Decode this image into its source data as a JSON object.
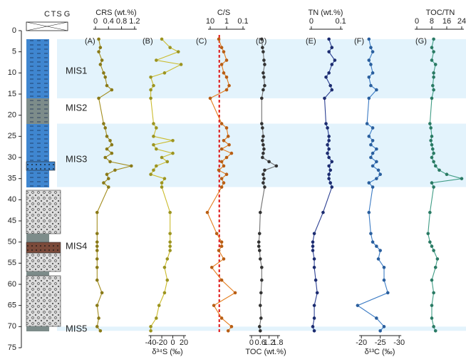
{
  "depth_axis": {
    "ylim": [
      0,
      75
    ],
    "yticks": [
      0,
      5,
      10,
      15,
      20,
      25,
      30,
      35,
      40,
      45,
      50,
      55,
      60,
      65,
      70,
      75
    ]
  },
  "grain_scale": [
    "C",
    "T",
    "S",
    "G"
  ],
  "mis": [
    {
      "name": "MIS1",
      "top": 2,
      "bottom": 16
    },
    {
      "name": "MIS2"
    },
    {
      "name": "MIS3",
      "top": 22,
      "bottom": 37
    },
    {
      "name": "MIS4"
    },
    {
      "name": "MIS5",
      "top": 70,
      "bottom": 71
    }
  ],
  "chart_data": [
    {
      "type": "line",
      "label": "(A)",
      "title": "CRS (wt.%)",
      "axis": "top",
      "xlim": [
        -0.35,
        1.4
      ],
      "xticks": [
        0,
        0.4,
        0.8,
        1.2
      ],
      "color": "#a38d1e",
      "point_color": "#8a7a18",
      "depths": [
        2,
        4,
        5,
        7,
        8,
        10,
        11,
        13,
        14,
        16,
        22,
        23,
        25,
        26,
        27,
        28,
        29,
        30,
        31,
        32,
        33,
        34,
        35,
        36,
        37,
        43,
        48,
        50,
        51,
        52,
        54,
        56,
        59,
        62,
        65,
        68,
        70,
        71
      ],
      "values": [
        0.1,
        0.15,
        0.1,
        0.2,
        0.15,
        0.25,
        0.3,
        0.35,
        0.5,
        0.1,
        0.25,
        0.3,
        0.35,
        0.45,
        0.5,
        0.35,
        0.5,
        0.3,
        0.45,
        1.1,
        0.6,
        0.35,
        0.4,
        0.25,
        0.4,
        0.05,
        0.05,
        0.05,
        0.05,
        0.05,
        0.05,
        0.05,
        0.05,
        0.2,
        0.05,
        0.1,
        0.05,
        0.15
      ]
    },
    {
      "type": "line",
      "label": "(B)",
      "title": "δ³⁴S (‰)",
      "axis": "bottom",
      "xlim": [
        -55,
        42
      ],
      "xticks": [
        -40,
        -20,
        0,
        20
      ],
      "color": "#cbbb2c",
      "point_color": "#9c9420",
      "depths": [
        2,
        4,
        5,
        7,
        8,
        10,
        11,
        13,
        14,
        16,
        22,
        23,
        25,
        26,
        27,
        28,
        29,
        30,
        31,
        32,
        33,
        34,
        35,
        36,
        37,
        43,
        48,
        50,
        51,
        52,
        54,
        56,
        59,
        62,
        65,
        68,
        70,
        71
      ],
      "values": [
        -20,
        -5,
        10,
        -30,
        15,
        -15,
        -40,
        -35,
        -40,
        -40,
        -35,
        -30,
        -35,
        0,
        -35,
        -30,
        0,
        -20,
        -10,
        -30,
        -35,
        -40,
        -15,
        -20,
        -20,
        -5,
        -5,
        -5,
        -5,
        -5,
        -10,
        -15,
        -10,
        -15,
        -25,
        -30,
        -40,
        -40
      ]
    },
    {
      "type": "line",
      "label": "(C)",
      "title": "C/S",
      "axis": "top",
      "log": true,
      "xlim": [
        45,
        0.067
      ],
      "xticks": [
        10,
        1,
        0.1
      ],
      "color": "#e47c1c",
      "point_color": "#b85e14",
      "reference_line": {
        "value": 2.8,
        "color": "#e01414"
      },
      "depths": [
        2,
        4,
        5,
        7,
        8,
        10,
        11,
        13,
        14,
        16,
        22,
        23,
        25,
        26,
        27,
        28,
        29,
        30,
        31,
        32,
        33,
        34,
        35,
        36,
        37,
        43,
        48,
        50,
        51,
        52,
        54,
        56,
        59,
        62,
        65,
        68,
        70,
        71
      ],
      "values": [
        3,
        2,
        1.5,
        1,
        2,
        1.5,
        1,
        0.7,
        1,
        10,
        2,
        1,
        0.8,
        1.5,
        0.7,
        2,
        0.5,
        1,
        2,
        1.5,
        3,
        1,
        2,
        1.5,
        2,
        15,
        4,
        2,
        2,
        3,
        1.5,
        8,
        2,
        0.3,
        6,
        2,
        0.5,
        0.8
      ]
    },
    {
      "type": "line",
      "label": "(D)",
      "title": "TOC (wt.%)",
      "axis": "bottom",
      "xlim": [
        -0.39,
        3.27
      ],
      "xticks": [
        0,
        0.6,
        1.2,
        1.8
      ],
      "color": "#707070",
      "point_color": "#333333",
      "depths": [
        2,
        4,
        5,
        7,
        8,
        10,
        11,
        13,
        14,
        16,
        22,
        23,
        25,
        26,
        27,
        28,
        29,
        30,
        31,
        32,
        33,
        34,
        35,
        36,
        37,
        43,
        48,
        50,
        51,
        52,
        54,
        56,
        59,
        62,
        65,
        68,
        70,
        71
      ],
      "values": [
        0.7,
        0.75,
        0.8,
        0.85,
        0.9,
        0.8,
        0.85,
        0.9,
        0.8,
        0.7,
        0.7,
        0.75,
        0.8,
        0.75,
        0.8,
        0.85,
        0.8,
        0.75,
        1.2,
        1.7,
        0.9,
        0.8,
        0.85,
        0.8,
        0.9,
        0.6,
        0.55,
        0.5,
        0.5,
        0.55,
        0.6,
        0.7,
        0.7,
        0.65,
        0.6,
        0.65,
        0.55,
        0.6
      ]
    },
    {
      "type": "line",
      "label": "(E)",
      "title": "TN (wt.%)",
      "axis": "top",
      "xlim": [
        -0.029,
        0.141
      ],
      "xticks": [
        0,
        0.1
      ],
      "color": "#2b3f92",
      "point_color": "#1c2c70",
      "depths": [
        2,
        4,
        5,
        7,
        8,
        10,
        11,
        13,
        14,
        16,
        22,
        23,
        25,
        26,
        27,
        28,
        29,
        30,
        31,
        32,
        33,
        34,
        35,
        36,
        37,
        43,
        48,
        50,
        51,
        52,
        54,
        56,
        59,
        62,
        65,
        68,
        70,
        71
      ],
      "values": [
        0.06,
        0.07,
        0.06,
        0.08,
        0.07,
        0.06,
        0.05,
        0.065,
        0.07,
        0.045,
        0.05,
        0.055,
        0.06,
        0.06,
        0.055,
        0.06,
        0.055,
        0.06,
        0.07,
        0.06,
        0.065,
        0.06,
        0.06,
        0.065,
        0.07,
        0.04,
        0.01,
        0.005,
        0.005,
        0.005,
        0.01,
        0.01,
        0.015,
        0.02,
        0.01,
        0.01,
        0.005,
        0.01
      ]
    },
    {
      "type": "line",
      "label": "(F)",
      "title": "δ¹³C (‰)",
      "axis": "bottom",
      "xlim": [
        -17.7,
        -32.8
      ],
      "xticks": [
        -20,
        -25,
        -30
      ],
      "color": "#3b7bc4",
      "point_color": "#2a5f9e",
      "depths": [
        2,
        4,
        5,
        7,
        8,
        10,
        11,
        13,
        14,
        16,
        22,
        23,
        25,
        26,
        27,
        28,
        29,
        30,
        31,
        32,
        33,
        34,
        35,
        36,
        37,
        43,
        48,
        50,
        51,
        52,
        54,
        56,
        59,
        62,
        65,
        68,
        70,
        71
      ],
      "values": [
        -22,
        -22.5,
        -23,
        -22,
        -22.5,
        -23,
        -22,
        -22.5,
        -24,
        -22,
        -21.5,
        -23,
        -22,
        -23,
        -22.5,
        -24,
        -23,
        -22.5,
        -24,
        -23,
        -24.5,
        -25,
        -24,
        -22,
        -23,
        -22,
        -22.5,
        -23,
        -24,
        -25,
        -24.5,
        -26,
        -26,
        -27,
        -19,
        -24,
        -26,
        -25
      ]
    },
    {
      "type": "line",
      "label": "(G)",
      "title": "TOC/TN",
      "axis": "top",
      "xlim": [
        -2.67,
        26.3
      ],
      "xticks": [
        0,
        8,
        16,
        24
      ],
      "color": "#3f9c84",
      "point_color": "#2a7a64",
      "depths": [
        2,
        4,
        5,
        7,
        8,
        10,
        11,
        13,
        14,
        16,
        22,
        23,
        25,
        26,
        27,
        28,
        29,
        30,
        31,
        32,
        33,
        34,
        35,
        36,
        37,
        43,
        48,
        50,
        51,
        52,
        54,
        56,
        59,
        62,
        65,
        68,
        70,
        71
      ],
      "values": [
        9,
        8,
        9,
        8,
        10,
        9,
        9,
        8.5,
        9,
        8,
        7,
        7.5,
        8,
        7.5,
        8,
        8.5,
        9,
        8,
        9,
        10,
        12,
        16,
        24,
        8,
        9,
        7,
        6,
        7,
        8,
        9,
        11,
        10,
        8,
        9,
        8,
        8,
        9,
        10
      ]
    }
  ]
}
